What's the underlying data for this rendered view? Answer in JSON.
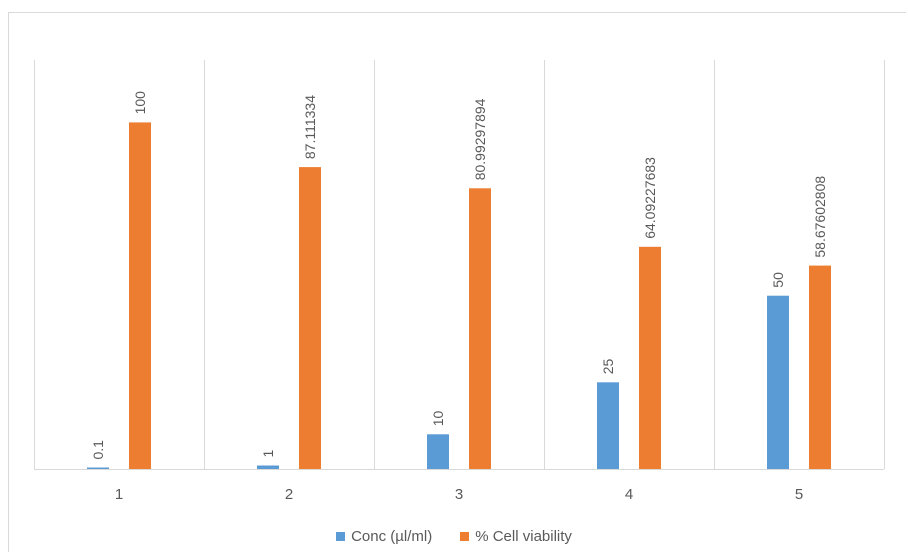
{
  "chart_data": {
    "type": "bar",
    "categories": [
      "1",
      "2",
      "3",
      "4",
      "5"
    ],
    "series": [
      {
        "name": "Conc (µl/ml)",
        "values": [
          0.1,
          1,
          10,
          25,
          50
        ],
        "labels": [
          "0.1",
          "1",
          "10",
          "25",
          "50"
        ],
        "color": "#5b9bd5"
      },
      {
        "name": "% Cell viability",
        "values": [
          100,
          87.111334,
          80.99297894,
          64.09227683,
          58.67602808
        ],
        "labels": [
          "100",
          "87.111334",
          "80.99297894",
          "64.09227683",
          "58.67602808"
        ],
        "color": "#ed7d31"
      }
    ],
    "ylim": [
      0,
      118
    ],
    "legend_position": "bottom",
    "vertical_gridlines": true,
    "axis_color": "#d9d9d9",
    "label_color": "#595959"
  }
}
